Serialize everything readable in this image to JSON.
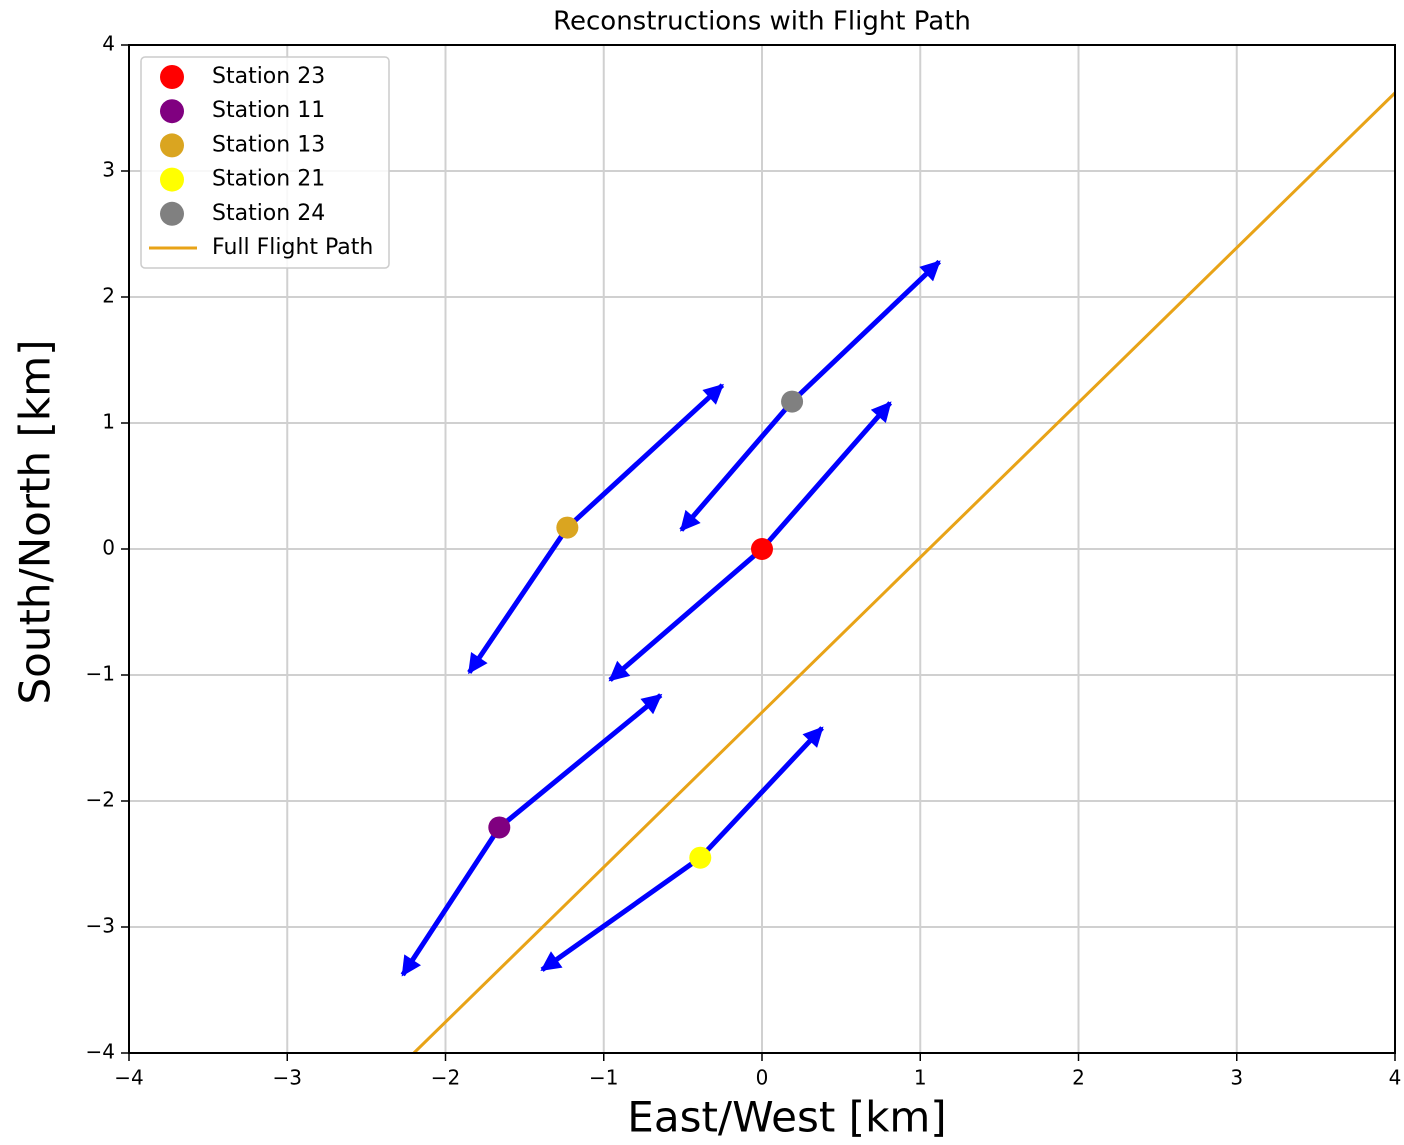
{
  "chart_data": {
    "type": "scatter",
    "title": "Reconstructions with Flight Path",
    "xlabel": "East/West [km]",
    "ylabel": "South/North [km]",
    "xlim": [
      -4,
      4
    ],
    "ylim": [
      -4,
      4
    ],
    "xticks": [
      {
        "value": -4,
        "label": "−4"
      },
      {
        "value": -3,
        "label": "−3"
      },
      {
        "value": -2,
        "label": "−2"
      },
      {
        "value": -1,
        "label": "−1"
      },
      0,
      1,
      2,
      3,
      4
    ],
    "yticks": [
      {
        "value": -4,
        "label": "−4"
      },
      {
        "value": -3,
        "label": "−3"
      },
      {
        "value": -2,
        "label": "−2"
      },
      {
        "value": -1,
        "label": "−1"
      },
      0,
      1,
      2,
      3,
      4
    ],
    "grid": true,
    "legend": "upper left",
    "arrow_color": "#0000ff",
    "series": [
      {
        "name": "Station 23",
        "color": "#ff0000",
        "x": [
          0
        ],
        "values": [
          0
        ],
        "arrow_x": [
          0.81,
          -0.96
        ],
        "arrow_y": [
          1.16,
          -1.04
        ]
      },
      {
        "name": "Station 11",
        "color": "#800080",
        "x": [
          -1.66
        ],
        "values": [
          -2.21
        ],
        "arrow_x": [
          -0.64,
          -2.27
        ],
        "arrow_y": [
          -1.16,
          -3.38
        ]
      },
      {
        "name": "Station 13",
        "color": "#daa520",
        "x": [
          -1.23
        ],
        "values": [
          0.17
        ],
        "arrow_x": [
          -0.25,
          -1.85
        ],
        "arrow_y": [
          1.3,
          -0.98
        ]
      },
      {
        "name": "Station 21",
        "color": "#ffff00",
        "x": [
          -0.39
        ],
        "values": [
          -2.45
        ],
        "arrow_x": [
          0.38,
          -1.39
        ],
        "arrow_y": [
          -1.42,
          -3.34
        ]
      },
      {
        "name": "Station 24",
        "color": "#808080",
        "x": [
          0.19
        ],
        "values": [
          1.17
        ],
        "arrow_x": [
          1.12,
          -0.51
        ],
        "arrow_y": [
          2.28,
          0.15
        ]
      }
    ],
    "lines": [
      {
        "name": "Full Flight Path",
        "color": "#e8a317",
        "x": [
          -2.2,
          4
        ],
        "values": [
          -4,
          3.62
        ]
      }
    ]
  }
}
